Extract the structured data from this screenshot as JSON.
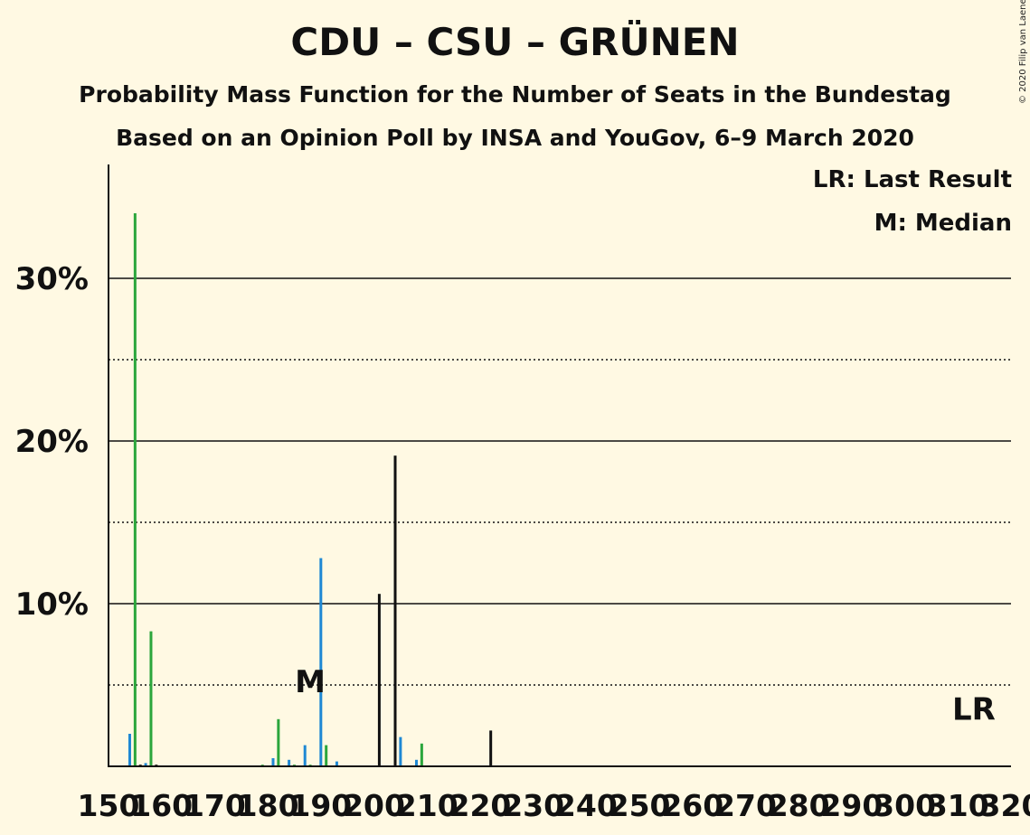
{
  "title": "CDU – CSU – GRÜNEN",
  "subtitle": "Probability Mass Function for the Number of Seats in the Bundestag",
  "subtitle2": "Based on an Opinion Poll by INSA and YouGov, 6–9 March 2020",
  "copyright": "© 2020 Filip van Laenen",
  "legend": {
    "last_result": "LR: Last Result",
    "median": "M: Median"
  },
  "colors": {
    "background": "#FFF9E3",
    "blue": "#1E88D4",
    "green": "#2BA63C",
    "black": "#111111"
  },
  "chart_data": {
    "type": "bar",
    "xlim": [
      150,
      320
    ],
    "ylim": [
      0,
      37
    ],
    "x_ticks": [
      150,
      160,
      170,
      180,
      190,
      200,
      210,
      220,
      230,
      240,
      250,
      260,
      270,
      280,
      290,
      300,
      310,
      320
    ],
    "x_tick_labels": [
      "150",
      "160",
      "170",
      "180",
      "190",
      "200",
      "210",
      "220",
      "230",
      "240",
      "250",
      "260",
      "270",
      "280",
      "290",
      "300",
      "310",
      "320"
    ],
    "y_major_gridlines": [
      10,
      20,
      30
    ],
    "y_minor_gridlines": [
      5,
      15,
      25
    ],
    "y_tick_labels": [
      {
        "value": 10,
        "label": "10%"
      },
      {
        "value": 20,
        "label": "20%"
      },
      {
        "value": 30,
        "label": "30%"
      }
    ],
    "median_seats": 188,
    "median_label": "M",
    "last_result_seats": 313,
    "last_result_label": "LR",
    "bars": [
      {
        "x": 154,
        "value": 2.0,
        "color": "blue"
      },
      {
        "x": 155,
        "value": 34.0,
        "color": "green"
      },
      {
        "x": 156,
        "value": 0.1,
        "color": "black"
      },
      {
        "x": 157,
        "value": 0.2,
        "color": "blue"
      },
      {
        "x": 158,
        "value": 8.3,
        "color": "green"
      },
      {
        "x": 159,
        "value": 0.1,
        "color": "black"
      },
      {
        "x": 176,
        "value": 0.05,
        "color": "black"
      },
      {
        "x": 178,
        "value": 0.05,
        "color": "blue"
      },
      {
        "x": 179,
        "value": 0.1,
        "color": "green"
      },
      {
        "x": 180,
        "value": 0.05,
        "color": "black"
      },
      {
        "x": 181,
        "value": 0.5,
        "color": "blue"
      },
      {
        "x": 182,
        "value": 2.9,
        "color": "green"
      },
      {
        "x": 183,
        "value": 0.05,
        "color": "black"
      },
      {
        "x": 184,
        "value": 0.4,
        "color": "blue"
      },
      {
        "x": 185,
        "value": 0.1,
        "color": "green"
      },
      {
        "x": 187,
        "value": 1.3,
        "color": "blue"
      },
      {
        "x": 188,
        "value": 0.1,
        "color": "green"
      },
      {
        "x": 190,
        "value": 12.8,
        "color": "blue"
      },
      {
        "x": 191,
        "value": 1.3,
        "color": "green"
      },
      {
        "x": 192,
        "value": 0.05,
        "color": "black"
      },
      {
        "x": 193,
        "value": 0.3,
        "color": "blue"
      },
      {
        "x": 201,
        "value": 10.6,
        "color": "black"
      },
      {
        "x": 204,
        "value": 19.1,
        "color": "black"
      },
      {
        "x": 205,
        "value": 1.8,
        "color": "blue"
      },
      {
        "x": 208,
        "value": 0.4,
        "color": "blue"
      },
      {
        "x": 209,
        "value": 1.4,
        "color": "green"
      },
      {
        "x": 213,
        "value": 0.05,
        "color": "black"
      },
      {
        "x": 222,
        "value": 2.2,
        "color": "black"
      }
    ]
  }
}
